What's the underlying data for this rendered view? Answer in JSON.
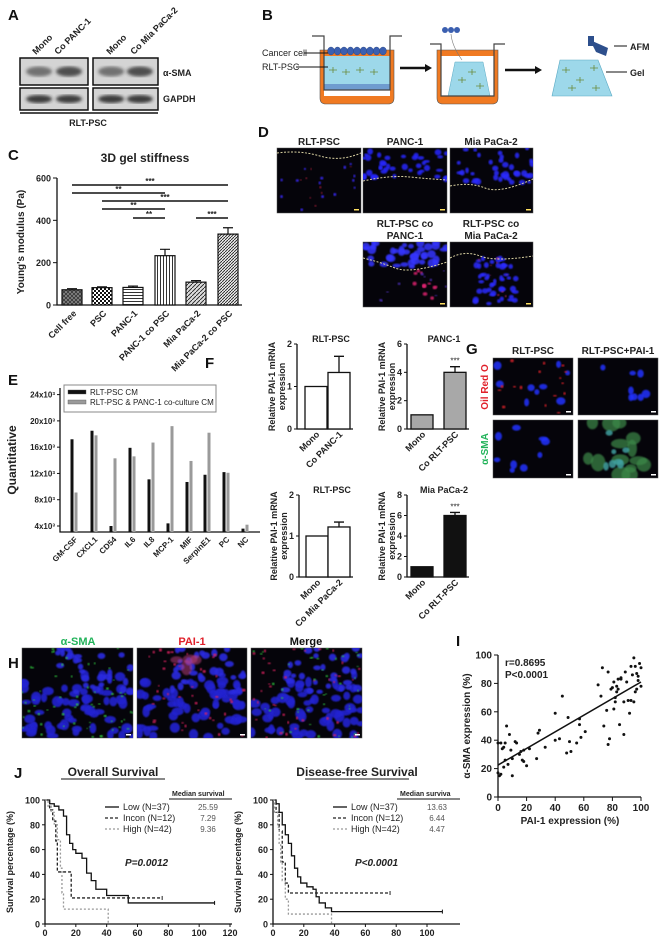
{
  "panel_labels": {
    "A": "A",
    "B": "B",
    "C": "C",
    "D": "D",
    "E": "E",
    "F": "F",
    "G": "G",
    "H": "H",
    "I": "I",
    "J": "J"
  },
  "panel_a": {
    "lanes": [
      "Mono",
      "Co PANC-1",
      "Mono",
      "Co Mia PaCa-2"
    ],
    "bands": [
      "α-SMA",
      "GAPDH"
    ],
    "group_label": "RLT-PSC"
  },
  "panel_b": {
    "cancer_cell": "Cancer cell",
    "rlt_psc": "RLT-PSC",
    "afm": "AFM",
    "gel": "Gel",
    "colors": {
      "well": "#f07a22",
      "gel": "#9dd8ea",
      "cells": "#3b5fb0"
    }
  },
  "panel_d": {
    "titles": [
      "RLT-PSC",
      "PANC-1",
      "Mia PaCa-2"
    ],
    "co_titles": [
      [
        "RLT-PSC co",
        "PANC-1"
      ],
      [
        "RLT-PSC co",
        "Mia PaCa-2"
      ]
    ]
  },
  "panel_g": {
    "col_titles": [
      "RLT-PSC",
      "RLT-PSC+PAI-1"
    ],
    "row_labels": [
      "Oil Red O",
      "α-SMA"
    ],
    "row_colors": [
      "#e0202a",
      "#22b35a"
    ]
  },
  "panel_h": {
    "titles": [
      "α-SMA",
      "PAI-1",
      "Merge"
    ],
    "title_colors": [
      "#22b35a",
      "#e0202a",
      "#111111"
    ]
  },
  "chart_data": [
    {
      "id": "C",
      "type": "bar",
      "title": "3D gel stiffness",
      "ylabel": "Young's modulus (Pa)",
      "ylim": [
        0,
        600
      ],
      "yticks": [
        0,
        200,
        400,
        600
      ],
      "categories": [
        "Cell free",
        "PSC",
        "PANC-1",
        "PANC-1 co PSC",
        "Mia PaCa-2",
        "Mia PaCa-2 co PSC"
      ],
      "values": [
        72,
        82,
        83,
        233,
        108,
        335
      ],
      "errors": [
        5,
        4,
        6,
        30,
        7,
        30
      ],
      "patterns": [
        "crosshatch",
        "checker",
        "horizontal",
        "vertical",
        "diagonal",
        "diagonal-dense"
      ],
      "significance": [
        {
          "from": 0,
          "to": 5,
          "label": "***"
        },
        {
          "from": 0,
          "to": 3,
          "label": "**"
        },
        {
          "from": 1,
          "to": 5,
          "label": "***"
        },
        {
          "from": 1,
          "to": 3,
          "label": "**"
        },
        {
          "from": 2,
          "to": 3,
          "label": "**"
        },
        {
          "from": 4,
          "to": 5,
          "label": "***"
        }
      ]
    },
    {
      "id": "E",
      "type": "bar",
      "ylabel": "Quantitative",
      "ylim": [
        3100,
        25000
      ],
      "yticks": [
        "4x10³",
        "8x10³",
        "12x10³",
        "16x10³",
        "20x10³",
        "24x10³"
      ],
      "ytick_values": [
        4000,
        8000,
        12000,
        16000,
        20000,
        24000
      ],
      "categories": [
        "GM-CSF",
        "CXCL1",
        "CD54",
        "IL6",
        "IL8",
        "MCP-1",
        "MIF",
        "SerpinE1",
        "PC",
        "NC"
      ],
      "series": [
        {
          "name": "RLT-PSC CM",
          "color": "#111111",
          "values": [
            17200,
            18500,
            4000,
            15900,
            11100,
            4400,
            10700,
            11800,
            12200,
            3600
          ]
        },
        {
          "name": "RLT-PSC & PANC-1 co-culture CM",
          "color": "#9a9a9a",
          "values": [
            9100,
            17800,
            14300,
            14600,
            16700,
            19200,
            13900,
            18200,
            12100,
            4200
          ]
        }
      ],
      "legend": "top"
    },
    {
      "id": "F1",
      "type": "bar",
      "title": "RLT-PSC",
      "ylabel": [
        "Relative PAI-1 mRNA",
        "expression"
      ],
      "ylim": [
        0,
        2
      ],
      "yticks": [
        0,
        1,
        2
      ],
      "categories": [
        "Mono",
        "Co PANC-1"
      ],
      "values": [
        1,
        1.33
      ],
      "errors": [
        0,
        0.38
      ],
      "bar_color": "#ffffff",
      "annotations": [
        "",
        ""
      ]
    },
    {
      "id": "F2",
      "type": "bar",
      "title": "PANC-1",
      "ylabel": [
        "Relative PAI-1 mRNA",
        "expression"
      ],
      "ylim": [
        0,
        6
      ],
      "yticks": [
        0,
        2,
        4,
        6
      ],
      "categories": [
        "Mono",
        "Co RLT-PSC"
      ],
      "values": [
        1,
        4
      ],
      "errors": [
        0,
        0.4
      ],
      "bar_color": "#a8a8a8",
      "annotations": [
        "",
        "***"
      ]
    },
    {
      "id": "F3",
      "type": "bar",
      "title": "RLT-PSC",
      "ylabel": [
        "Relative PAI-1 mRNA",
        "expression"
      ],
      "ylim": [
        0,
        2
      ],
      "yticks": [
        0,
        1,
        2
      ],
      "categories": [
        "Mono",
        "Co Mia PaCa-2"
      ],
      "values": [
        1,
        1.22
      ],
      "errors": [
        0,
        0.12
      ],
      "bar_color": "#ffffff",
      "annotations": [
        "",
        ""
      ]
    },
    {
      "id": "F4",
      "type": "bar",
      "title": "Mia PaCa-2",
      "ylabel": [
        "Relative PAI-1 mRNA",
        "expression"
      ],
      "ylim": [
        0,
        8
      ],
      "yticks": [
        0,
        2,
        4,
        6,
        8
      ],
      "categories": [
        "Mono",
        "Co RLT-PSC"
      ],
      "values": [
        1,
        6
      ],
      "errors": [
        0,
        0.3
      ],
      "bar_color": "#111111",
      "annotations": [
        "",
        "***"
      ]
    },
    {
      "id": "I",
      "type": "scatter",
      "xlabel": "PAI-1 expression (%)",
      "ylabel": "α-SMA expression (%)",
      "xlim": [
        0,
        100
      ],
      "ylim": [
        0,
        100
      ],
      "xticks": [
        0,
        20,
        40,
        60,
        80,
        100
      ],
      "yticks": [
        0,
        20,
        40,
        60,
        80,
        100
      ],
      "stats": [
        "r=0.8695",
        "P<0.0001"
      ],
      "fit": [
        [
          0,
          22.5
        ],
        [
          100,
          81
        ]
      ],
      "points": [
        [
          0,
          17
        ],
        [
          1,
          15
        ],
        [
          2,
          16
        ],
        [
          0,
          38
        ],
        [
          2,
          38
        ],
        [
          3,
          34
        ],
        [
          4,
          35
        ],
        [
          5,
          38
        ],
        [
          4,
          21
        ],
        [
          5,
          26
        ],
        [
          6,
          50
        ],
        [
          7,
          23
        ],
        [
          8,
          44
        ],
        [
          9,
          33
        ],
        [
          10,
          27
        ],
        [
          10,
          15
        ],
        [
          12,
          39
        ],
        [
          13,
          38
        ],
        [
          15,
          30
        ],
        [
          16,
          32
        ],
        [
          17,
          26
        ],
        [
          18,
          33
        ],
        [
          18,
          25
        ],
        [
          20,
          22
        ],
        [
          22,
          34
        ],
        [
          27,
          27
        ],
        [
          28,
          45
        ],
        [
          29,
          47
        ],
        [
          33,
          35
        ],
        [
          40,
          59
        ],
        [
          40,
          40
        ],
        [
          43,
          41
        ],
        [
          45,
          71
        ],
        [
          48,
          31
        ],
        [
          49,
          56
        ],
        [
          50,
          39
        ],
        [
          51,
          32
        ],
        [
          55,
          38
        ],
        [
          57,
          55
        ],
        [
          57,
          51
        ],
        [
          58,
          42
        ],
        [
          61,
          46
        ],
        [
          70,
          79
        ],
        [
          72,
          71
        ],
        [
          73,
          91
        ],
        [
          74,
          50
        ],
        [
          76,
          61
        ],
        [
          77,
          88
        ],
        [
          77,
          37
        ],
        [
          78,
          41
        ],
        [
          79,
          76
        ],
        [
          81,
          81
        ],
        [
          81,
          62
        ],
        [
          82,
          70
        ],
        [
          82,
          67
        ],
        [
          83,
          78
        ],
        [
          83,
          74
        ],
        [
          84,
          76
        ],
        [
          85,
          51
        ],
        [
          86,
          84
        ],
        [
          86,
          83
        ],
        [
          88,
          44
        ],
        [
          89,
          88
        ],
        [
          90,
          81
        ],
        [
          91,
          68
        ],
        [
          92,
          59
        ],
        [
          93,
          92
        ],
        [
          93,
          68
        ],
        [
          94,
          86
        ],
        [
          95,
          98
        ],
        [
          96,
          92
        ],
        [
          96,
          74
        ],
        [
          97,
          87
        ],
        [
          97,
          76
        ],
        [
          98,
          85
        ],
        [
          98,
          82
        ],
        [
          99,
          94
        ],
        [
          100,
          91
        ],
        [
          100,
          78
        ],
        [
          95,
          67
        ],
        [
          88,
          67
        ],
        [
          84,
          83
        ],
        [
          80,
          77
        ]
      ]
    },
    {
      "id": "J1",
      "type": "line",
      "title": "Overall Survival",
      "ylabel": "Survival percentage (%)",
      "xlim": [
        0,
        120
      ],
      "ylim": [
        0,
        100
      ],
      "xticks": [
        0,
        20,
        40,
        60,
        80,
        100,
        120
      ],
      "yticks": [
        0,
        20,
        40,
        60,
        80,
        100
      ],
      "pvalue": "P=0.0012",
      "median_header": "Median survival",
      "series": [
        {
          "name": "Low (N=37)",
          "median": "25.59",
          "color": "#111111",
          "dash": "",
          "points": [
            [
              0,
              100
            ],
            [
              3,
              97
            ],
            [
              6,
              95
            ],
            [
              9,
              92
            ],
            [
              12,
              87
            ],
            [
              14,
              72
            ],
            [
              16,
              65
            ],
            [
              18,
              60
            ],
            [
              20,
              57
            ],
            [
              24,
              53
            ],
            [
              27,
              41
            ],
            [
              30,
              35
            ],
            [
              33,
              28
            ],
            [
              40,
              23
            ],
            [
              54,
              17
            ],
            [
              110,
              17
            ]
          ]
        },
        {
          "name": "Incon (N=12)",
          "median": "7.29",
          "color": "#222222",
          "dash": "3,2",
          "points": [
            [
              0,
              100
            ],
            [
              3,
              92
            ],
            [
              5,
              83
            ],
            [
              7,
              67
            ],
            [
              8,
              42
            ],
            [
              14,
              42
            ],
            [
              17,
              21
            ],
            [
              76,
              21
            ]
          ]
        },
        {
          "name": "High (N=42)",
          "median": "9.36",
          "color": "#999999",
          "dash": "2,2",
          "points": [
            [
              0,
              100
            ],
            [
              2,
              95
            ],
            [
              4,
              90
            ],
            [
              6,
              80
            ],
            [
              8,
              68
            ],
            [
              10,
              45
            ],
            [
              11,
              25
            ],
            [
              12,
              12
            ],
            [
              41,
              12
            ],
            [
              41,
              0
            ]
          ]
        }
      ]
    },
    {
      "id": "J2",
      "type": "line",
      "title": "Disease-free  Survival",
      "ylabel": "Survival percentage (%)",
      "xlim": [
        0,
        120
      ],
      "ylim": [
        0,
        100
      ],
      "xticks": [
        0,
        20,
        40,
        60,
        80,
        100
      ],
      "yticks": [
        0,
        20,
        40,
        60,
        80,
        100
      ],
      "pvalue": "P<0.0001",
      "median_header": "Median surviva",
      "series": [
        {
          "name": "Low (N=37)",
          "median": "13.63",
          "color": "#111111",
          "dash": "",
          "points": [
            [
              0,
              100
            ],
            [
              2,
              97
            ],
            [
              4,
              90
            ],
            [
              6,
              80
            ],
            [
              8,
              72
            ],
            [
              10,
              65
            ],
            [
              12,
              55
            ],
            [
              14,
              45
            ],
            [
              16,
              38
            ],
            [
              18,
              33
            ],
            [
              22,
              30
            ],
            [
              26,
              28
            ],
            [
              28,
              22
            ],
            [
              30,
              17
            ],
            [
              34,
              13
            ],
            [
              38,
              10
            ],
            [
              110,
              10
            ]
          ]
        },
        {
          "name": "Incon (N=12)",
          "median": "6.44",
          "color": "#222222",
          "dash": "3,2",
          "points": [
            [
              0,
              100
            ],
            [
              2,
              90
            ],
            [
              4,
              75
            ],
            [
              6,
              50
            ],
            [
              8,
              33
            ],
            [
              10,
              25
            ],
            [
              76,
              25
            ]
          ]
        },
        {
          "name": "High (N=42)",
          "median": "4.47",
          "color": "#999999",
          "dash": "2,2",
          "points": [
            [
              0,
              100
            ],
            [
              1,
              90
            ],
            [
              3,
              78
            ],
            [
              4,
              65
            ],
            [
              5,
              50
            ],
            [
              6,
              35
            ],
            [
              8,
              20
            ],
            [
              10,
              8
            ],
            [
              38,
              8
            ],
            [
              38,
              0
            ]
          ]
        }
      ]
    }
  ]
}
